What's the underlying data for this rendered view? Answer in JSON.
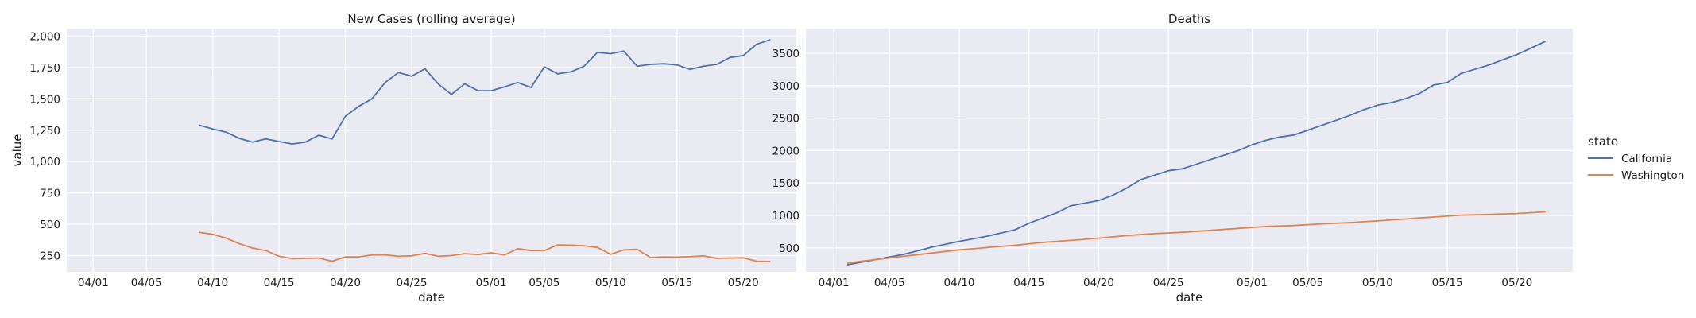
{
  "legend": {
    "title": "state",
    "items": [
      {
        "name": "California",
        "color": "#4c72b0"
      },
      {
        "name": "Washington",
        "color": "#dd8452"
      }
    ]
  },
  "chart_data": [
    {
      "type": "line",
      "title": "New Cases (rolling average)",
      "xlabel": "date",
      "ylabel": "value",
      "xlim": [
        "2020-03-30",
        "2020-05-24"
      ],
      "ylim": [
        120,
        2060
      ],
      "x_ticks": [
        "2020-04-01",
        "2020-04-05",
        "2020-04-10",
        "2020-04-15",
        "2020-04-20",
        "2020-04-25",
        "2020-05-01",
        "2020-05-05",
        "2020-05-10",
        "2020-05-15",
        "2020-05-20"
      ],
      "x_tick_labels": [
        "04/01",
        "04/05",
        "04/10",
        "04/15",
        "04/20",
        "04/25",
        "05/01",
        "05/05",
        "05/10",
        "05/15",
        "05/20"
      ],
      "y_ticks": [
        250,
        500,
        750,
        1000,
        1250,
        1500,
        1750,
        2000
      ],
      "y_tick_labels": [
        "250",
        "500",
        "750",
        "1,000",
        "1,250",
        "1,500",
        "1,750",
        "2,000"
      ],
      "grid": true,
      "series": [
        {
          "name": "California",
          "x": [
            "2020-04-09",
            "2020-04-10",
            "2020-04-11",
            "2020-04-12",
            "2020-04-13",
            "2020-04-14",
            "2020-04-15",
            "2020-04-16",
            "2020-04-17",
            "2020-04-18",
            "2020-04-19",
            "2020-04-20",
            "2020-04-21",
            "2020-04-22",
            "2020-04-23",
            "2020-04-24",
            "2020-04-25",
            "2020-04-26",
            "2020-04-27",
            "2020-04-28",
            "2020-04-29",
            "2020-04-30",
            "2020-05-01",
            "2020-05-02",
            "2020-05-03",
            "2020-05-04",
            "2020-05-05",
            "2020-05-06",
            "2020-05-07",
            "2020-05-08",
            "2020-05-09",
            "2020-05-10",
            "2020-05-11",
            "2020-05-12",
            "2020-05-13",
            "2020-05-14",
            "2020-05-15",
            "2020-05-16",
            "2020-05-17",
            "2020-05-18",
            "2020-05-19",
            "2020-05-20",
            "2020-05-21",
            "2020-05-22"
          ],
          "values": [
            1290,
            1260,
            1235,
            1185,
            1155,
            1180,
            1160,
            1140,
            1155,
            1210,
            1180,
            1360,
            1440,
            1500,
            1630,
            1710,
            1680,
            1740,
            1620,
            1535,
            1620,
            1565,
            1565,
            1595,
            1630,
            1590,
            1755,
            1700,
            1715,
            1760,
            1870,
            1860,
            1880,
            1760,
            1775,
            1780,
            1770,
            1735,
            1760,
            1775,
            1830,
            1845,
            1935,
            1970
          ]
        },
        {
          "name": "Washington",
          "x": [
            "2020-04-09",
            "2020-04-10",
            "2020-04-11",
            "2020-04-12",
            "2020-04-13",
            "2020-04-14",
            "2020-04-15",
            "2020-04-16",
            "2020-04-17",
            "2020-04-18",
            "2020-04-19",
            "2020-04-20",
            "2020-04-21",
            "2020-04-22",
            "2020-04-23",
            "2020-04-24",
            "2020-04-25",
            "2020-04-26",
            "2020-04-27",
            "2020-04-28",
            "2020-04-29",
            "2020-04-30",
            "2020-05-01",
            "2020-05-02",
            "2020-05-03",
            "2020-05-04",
            "2020-05-05",
            "2020-05-06",
            "2020-05-07",
            "2020-05-08",
            "2020-05-09",
            "2020-05-10",
            "2020-05-11",
            "2020-05-12",
            "2020-05-13",
            "2020-05-14",
            "2020-05-15",
            "2020-05-16",
            "2020-05-17",
            "2020-05-18",
            "2020-05-19",
            "2020-05-20",
            "2020-05-21",
            "2020-05-22"
          ],
          "values": [
            435,
            420,
            390,
            345,
            310,
            290,
            245,
            225,
            228,
            230,
            205,
            240,
            240,
            255,
            255,
            245,
            248,
            268,
            245,
            250,
            265,
            258,
            272,
            255,
            305,
            290,
            290,
            335,
            333,
            328,
            315,
            260,
            295,
            300,
            235,
            240,
            238,
            242,
            248,
            228,
            230,
            232,
            205,
            203
          ]
        }
      ]
    },
    {
      "type": "line",
      "title": "Deaths",
      "xlabel": "date",
      "ylabel": "",
      "xlim": [
        "2020-03-30",
        "2020-05-24"
      ],
      "ylim": [
        130,
        3880
      ],
      "x_ticks": [
        "2020-04-01",
        "2020-04-05",
        "2020-04-10",
        "2020-04-15",
        "2020-04-20",
        "2020-04-25",
        "2020-05-01",
        "2020-05-05",
        "2020-05-10",
        "2020-05-15",
        "2020-05-20"
      ],
      "x_tick_labels": [
        "04/01",
        "04/05",
        "04/10",
        "04/15",
        "04/20",
        "04/25",
        "05/01",
        "05/05",
        "05/10",
        "05/15",
        "05/20"
      ],
      "y_ticks": [
        500,
        1000,
        1500,
        2000,
        2500,
        3000,
        3500
      ],
      "y_tick_labels": [
        "500",
        "1000",
        "1500",
        "2000",
        "2500",
        "3000",
        "3500"
      ],
      "grid": true,
      "series": [
        {
          "name": "California",
          "x": [
            "2020-04-02",
            "2020-04-04",
            "2020-04-06",
            "2020-04-08",
            "2020-04-10",
            "2020-04-12",
            "2020-04-14",
            "2020-04-15",
            "2020-04-17",
            "2020-04-18",
            "2020-04-20",
            "2020-04-21",
            "2020-04-22",
            "2020-04-23",
            "2020-04-24",
            "2020-04-25",
            "2020-04-26",
            "2020-04-28",
            "2020-04-30",
            "2020-05-01",
            "2020-05-02",
            "2020-05-03",
            "2020-05-04",
            "2020-05-06",
            "2020-05-08",
            "2020-05-09",
            "2020-05-10",
            "2020-05-11",
            "2020-05-12",
            "2020-05-13",
            "2020-05-14",
            "2020-05-15",
            "2020-05-16",
            "2020-05-18",
            "2020-05-20",
            "2020-05-21",
            "2020-05-22"
          ],
          "values": [
            240,
            320,
            400,
            510,
            600,
            680,
            780,
            880,
            1040,
            1150,
            1230,
            1310,
            1420,
            1550,
            1620,
            1690,
            1720,
            1860,
            2000,
            2090,
            2160,
            2210,
            2240,
            2390,
            2540,
            2630,
            2700,
            2740,
            2800,
            2880,
            3010,
            3050,
            3190,
            3320,
            3480,
            3580,
            3680
          ]
        },
        {
          "name": "Washington",
          "x": [
            "2020-04-02",
            "2020-04-03",
            "2020-04-04",
            "2020-04-05",
            "2020-04-06",
            "2020-04-08",
            "2020-04-10",
            "2020-04-12",
            "2020-04-14",
            "2020-04-16",
            "2020-04-18",
            "2020-04-20",
            "2020-04-22",
            "2020-04-24",
            "2020-04-26",
            "2020-04-28",
            "2020-04-30",
            "2020-05-02",
            "2020-05-04",
            "2020-05-06",
            "2020-05-08",
            "2020-05-10",
            "2020-05-12",
            "2020-05-14",
            "2020-05-16",
            "2020-05-18",
            "2020-05-20",
            "2020-05-22"
          ],
          "values": [
            265,
            295,
            320,
            345,
            370,
            420,
            470,
            505,
            540,
            585,
            615,
            650,
            690,
            720,
            740,
            770,
            800,
            830,
            845,
            870,
            890,
            915,
            945,
            975,
            1005,
            1015,
            1030,
            1055
          ]
        }
      ]
    }
  ]
}
